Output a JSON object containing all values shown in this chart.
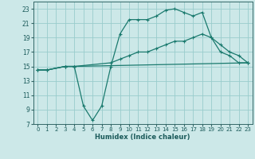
{
  "title": "",
  "xlabel": "Humidex (Indice chaleur)",
  "bg_color": "#cce8e8",
  "line_color": "#1a7a6e",
  "grid_color": "#99cccc",
  "xlim": [
    -0.5,
    23.5
  ],
  "ylim": [
    7,
    24
  ],
  "xticks": [
    0,
    1,
    2,
    3,
    4,
    5,
    6,
    7,
    8,
    9,
    10,
    11,
    12,
    13,
    14,
    15,
    16,
    17,
    18,
    19,
    20,
    21,
    22,
    23
  ],
  "yticks": [
    7,
    9,
    11,
    13,
    15,
    17,
    19,
    21,
    23
  ],
  "curve1_x": [
    0,
    1,
    3,
    4,
    5,
    6,
    7,
    8,
    9,
    10,
    11,
    12,
    13,
    14,
    15,
    16,
    17,
    18,
    19,
    20,
    21,
    22,
    23
  ],
  "curve1_y": [
    14.5,
    14.5,
    15.0,
    15.0,
    9.5,
    7.5,
    9.5,
    15.0,
    19.5,
    21.5,
    21.5,
    21.5,
    22.0,
    22.8,
    23.0,
    22.5,
    22.0,
    22.5,
    19.0,
    17.0,
    16.5,
    15.5,
    15.5
  ],
  "curve2_x": [
    0,
    1,
    3,
    4,
    8,
    9,
    10,
    11,
    12,
    13,
    14,
    15,
    16,
    17,
    18,
    19,
    20,
    21,
    22,
    23
  ],
  "curve2_y": [
    14.5,
    14.5,
    15.0,
    15.0,
    15.5,
    16.0,
    16.5,
    17.0,
    17.0,
    17.5,
    18.0,
    18.5,
    18.5,
    19.0,
    19.5,
    19.0,
    18.0,
    17.0,
    16.5,
    15.5
  ],
  "curve3_x": [
    0,
    1,
    3,
    4,
    23
  ],
  "curve3_y": [
    14.5,
    14.5,
    15.0,
    15.0,
    15.5
  ]
}
